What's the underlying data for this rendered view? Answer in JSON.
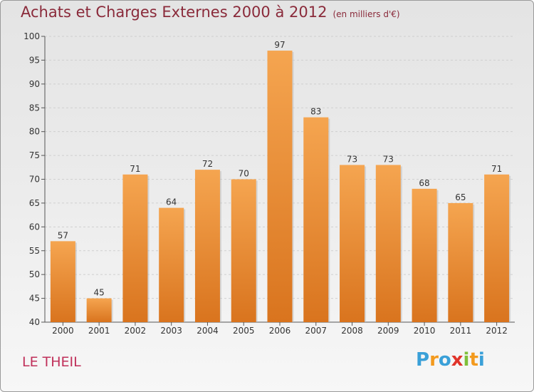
{
  "title": "Achats et Charges Externes 2000 à 2012",
  "unit": "(en milliers d'€)",
  "commune": "LE THEIL",
  "logo": {
    "letters": [
      "P",
      "r",
      "o",
      "x",
      "i",
      "t",
      "i"
    ],
    "colors": [
      "#3aa0d8",
      "#f39a1e",
      "#3aa0d8",
      "#e0342a",
      "#7fbf3a",
      "#f39a1e",
      "#3aa0d8"
    ]
  },
  "colors": {
    "bar_top": "#f5a550",
    "bar_bottom": "#d9741e",
    "title": "#8a2a3a",
    "commune": "#c0305a"
  },
  "chart_data": {
    "type": "bar",
    "title": "Achats et Charges Externes 2000 à 2012",
    "subtitle": "(en milliers d'€)",
    "categories": [
      "2000",
      "2001",
      "2002",
      "2003",
      "2004",
      "2005",
      "2006",
      "2007",
      "2008",
      "2009",
      "2010",
      "2011",
      "2012"
    ],
    "values": [
      57,
      45,
      71,
      64,
      72,
      70,
      97,
      83,
      73,
      73,
      68,
      65,
      71
    ],
    "ylim": [
      40,
      100
    ],
    "yticks": [
      40,
      45,
      50,
      55,
      60,
      65,
      70,
      75,
      80,
      85,
      90,
      95,
      100
    ],
    "grid": true,
    "data_labels": true
  }
}
